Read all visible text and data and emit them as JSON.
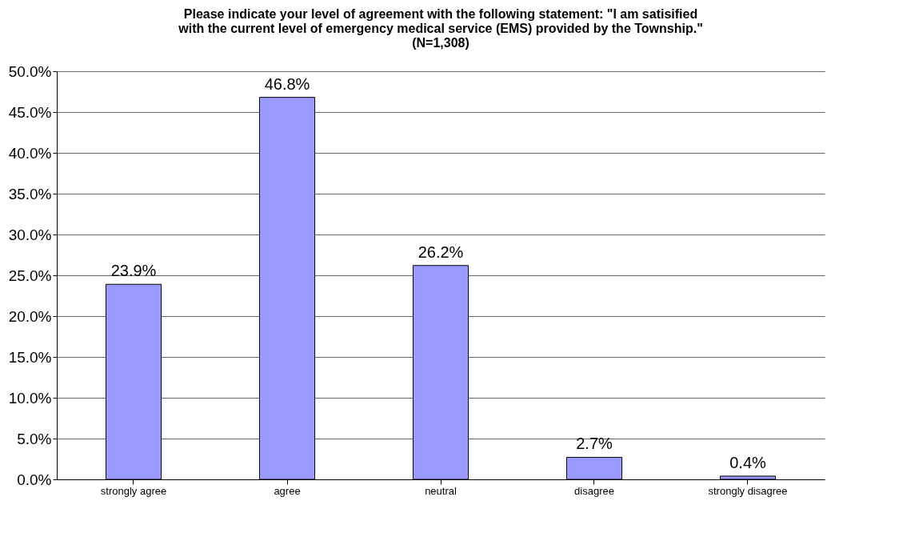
{
  "chart_data": {
    "type": "bar",
    "title": "Please indicate your level of agreement with the following statement: \"I am satisified with the current level of emergency medical service (EMS) provided by the Township.\" (N=1,308)",
    "categories": [
      "strongly agree",
      "agree",
      "neutral",
      "disagree",
      "strongly disagree"
    ],
    "values": [
      23.9,
      46.8,
      26.2,
      2.7,
      0.4
    ],
    "value_labels": [
      "23.9%",
      "46.8%",
      "26.2%",
      "2.7%",
      "0.4%"
    ],
    "color": "#9999ff",
    "ylim": [
      0,
      50
    ],
    "yticks": [
      {
        "value": 0,
        "label": "0.0%"
      },
      {
        "value": 5,
        "label": "5.0%"
      },
      {
        "value": 10,
        "label": "10.0%"
      },
      {
        "value": 15,
        "label": "15.0%"
      },
      {
        "value": 20,
        "label": "20.0%"
      },
      {
        "value": 25,
        "label": "25.0%"
      },
      {
        "value": 30,
        "label": "30.0%"
      },
      {
        "value": 35,
        "label": "35.0%"
      },
      {
        "value": 40,
        "label": "40.0%"
      },
      {
        "value": 45,
        "label": "45.0%"
      },
      {
        "value": 50,
        "label": "50.0%"
      }
    ],
    "grid": "y"
  }
}
